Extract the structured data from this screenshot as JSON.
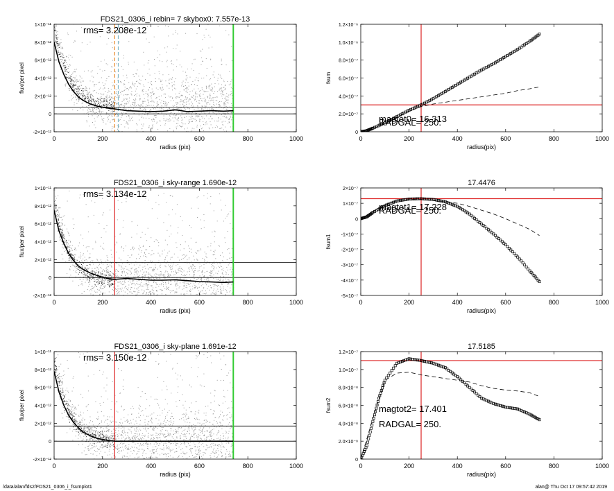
{
  "footer": {
    "path": "/data/alan/fds2/FDS21_0306_i_fsumplot1",
    "stamp": "alan@  Thu Oct 17 09:57:42 2019"
  },
  "colors": {
    "scatter": "#9a9a9a",
    "profile": "#000000",
    "red_marker": "#dd2222",
    "green_marker": "#33cc33",
    "orange_marker": "#e88a2a",
    "cyan_marker": "#7fb8c8"
  },
  "chart_data": [
    {
      "id": "p1",
      "type": "scatter",
      "title": "FDS21_0306_i rebin= 7    skybox0:  7.557e-13",
      "annotation": "rms= 3.208e-12",
      "xlabel": "radius (pix)",
      "ylabel": "flux/per pixel",
      "xlim": [
        0,
        1000
      ],
      "ylim": [
        -2e-12,
        1e-11
      ],
      "xticks": [
        0,
        200,
        400,
        600,
        800,
        1000
      ],
      "xtick_labels": [
        "0",
        "200",
        "400",
        "600",
        "800",
        "1000"
      ],
      "yticks": [
        -2e-12,
        0,
        2e-12,
        4e-12,
        6e-12,
        8e-12,
        1e-11
      ],
      "ytick_labels": [
        "-2×10⁻¹²",
        "0",
        "2×10⁻¹²",
        "4×10⁻¹²",
        "6×10⁻¹²",
        "8×10⁻¹²",
        "1×10⁻¹¹"
      ],
      "hlines": [
        0,
        7.557e-13
      ],
      "vlines": [
        {
          "x": 250,
          "color": "orange",
          "style": "dash"
        },
        {
          "x": 265,
          "color": "cyan",
          "style": "dash"
        },
        {
          "x": 740,
          "color": "green",
          "style": "solid"
        }
      ],
      "scatter_model": {
        "peak": 9e-12,
        "scale_length": 60,
        "baseline": 7.5e-13,
        "spread": 1.6e-12,
        "rmax": 740
      },
      "profile": {
        "x": [
          0,
          20,
          40,
          60,
          80,
          100,
          120,
          150,
          180,
          220,
          250,
          300,
          350,
          400,
          450,
          500,
          550,
          600,
          650,
          700,
          740
        ],
        "y": [
          8e-12,
          5.8e-12,
          4.4e-12,
          3.3e-12,
          2.5e-12,
          1.9e-12,
          1.5e-12,
          1.1e-12,
          8.5e-13,
          6.5e-13,
          5.5e-13,
          3.5e-13,
          3e-13,
          2.5e-13,
          3e-13,
          4.5e-13,
          2.5e-13,
          3e-13,
          3.5e-13,
          3e-13,
          3.5e-13
        ]
      }
    },
    {
      "id": "p2",
      "type": "line",
      "title": "",
      "annotations": [
        "magtot0=  16.313",
        "RADGAL=    250."
      ],
      "xlabel": "radius(pix)",
      "ylabel": "fsum",
      "xlim": [
        0,
        1000
      ],
      "ylim": [
        0,
        1.2e-06
      ],
      "xticks": [
        0,
        200,
        400,
        600,
        800,
        1000
      ],
      "xtick_labels": [
        "0",
        "200",
        "400",
        "600",
        "800",
        "1000"
      ],
      "yticks": [
        0,
        2e-07,
        4e-07,
        6e-07,
        8e-07,
        1e-06,
        1.2e-06
      ],
      "ytick_labels": [
        "0",
        "2.0×10⁻⁷",
        "4.0×10⁻⁷",
        "6.0×10⁻⁷",
        "8.0×10⁻⁷",
        "1.0×10⁻⁶",
        "1.2×10⁻⁶"
      ],
      "hline": 3e-07,
      "vline": 250,
      "series": [
        {
          "style": "markers",
          "x": [
            0,
            25,
            50,
            100,
            150,
            200,
            250,
            300,
            350,
            400,
            450,
            500,
            550,
            600,
            650,
            700,
            740
          ],
          "y": [
            0,
            1.2e-08,
            4e-08,
            1e-07,
            1.7e-07,
            2.4e-07,
            3e-07,
            3.7e-07,
            4.5e-07,
            5.3e-07,
            6.1e-07,
            6.9e-07,
            7.6e-07,
            8.4e-07,
            9.2e-07,
            1.01e-06,
            1.09e-06
          ]
        },
        {
          "style": "dash",
          "x": [
            0,
            50,
            100,
            150,
            200,
            250,
            300,
            350,
            400,
            450,
            500,
            550,
            600,
            650,
            700,
            740
          ],
          "y": [
            0,
            3.5e-08,
            9.5e-08,
            1.6e-07,
            2.3e-07,
            2.8e-07,
            3.1e-07,
            3.3e-07,
            3.5e-07,
            3.7e-07,
            3.9e-07,
            4.1e-07,
            4.3e-07,
            4.6e-07,
            4.8e-07,
            5e-07
          ]
        }
      ]
    },
    {
      "id": "p3",
      "type": "scatter",
      "title": "FDS21_0306_i sky-range  1.690e-12",
      "annotation": "rms= 3.134e-12",
      "xlabel": "radius (pix)",
      "ylabel": "flux/per pixel",
      "xlim": [
        0,
        1000
      ],
      "ylim": [
        -2e-12,
        1e-11
      ],
      "xticks": [
        0,
        200,
        400,
        600,
        800,
        1000
      ],
      "xtick_labels": [
        "0",
        "200",
        "400",
        "600",
        "800",
        "1000"
      ],
      "yticks": [
        -2e-12,
        0,
        2e-12,
        4e-12,
        6e-12,
        8e-12,
        1e-11
      ],
      "ytick_labels": [
        "-2×10⁻¹²",
        "0",
        "2×10⁻¹²",
        "4×10⁻¹²",
        "6×10⁻¹²",
        "8×10⁻¹²",
        "1×10⁻¹¹"
      ],
      "hlines": [
        0,
        1.69e-12
      ],
      "vlines": [
        {
          "x": 250,
          "color": "red",
          "style": "solid"
        },
        {
          "x": 740,
          "color": "green",
          "style": "solid"
        }
      ],
      "scatter_model": {
        "peak": 9e-12,
        "scale_length": 60,
        "baseline": -5e-13,
        "spread": 1.6e-12,
        "rmax": 740
      },
      "profile": {
        "x": [
          0,
          20,
          40,
          60,
          80,
          100,
          120,
          150,
          180,
          220,
          250,
          300,
          350,
          400,
          450,
          500,
          550,
          600,
          650,
          700,
          740
        ],
        "y": [
          7.5e-12,
          5.2e-12,
          3.8e-12,
          2.7e-12,
          1.9e-12,
          1.3e-12,
          9e-13,
          5e-13,
          2e-13,
          -1e-13,
          -2e-13,
          -1e-13,
          -2e-13,
          -3e-13,
          -3e-13,
          -2.5e-13,
          -3.5e-13,
          -4.5e-13,
          -5e-13,
          -5.5e-13,
          -5e-13
        ]
      }
    },
    {
      "id": "p4",
      "type": "line",
      "title": "17.4476",
      "annotations": [
        "magtot1=  17.228",
        "RADGAL=    250."
      ],
      "xlabel": "radius(pix)",
      "ylabel": "fsum1",
      "xlim": [
        0,
        1000
      ],
      "ylim": [
        -5e-07,
        2e-07
      ],
      "xticks": [
        0,
        200,
        400,
        600,
        800,
        1000
      ],
      "xtick_labels": [
        "0",
        "200",
        "400",
        "600",
        "800",
        "1000"
      ],
      "yticks": [
        -5e-07,
        -4e-07,
        -3e-07,
        -2e-07,
        -1e-07,
        0,
        1e-07,
        2e-07
      ],
      "ytick_labels": [
        "-5×10⁻⁷",
        "-4×10⁻⁷",
        "-3×10⁻⁷",
        "-2×10⁻⁷",
        "-1×10⁻⁷",
        "0",
        "1×10⁻⁷",
        "2×10⁻⁷"
      ],
      "hline": 1.3e-07,
      "vline": 250,
      "series": [
        {
          "style": "markers",
          "x": [
            0,
            25,
            50,
            100,
            150,
            200,
            250,
            300,
            350,
            400,
            450,
            500,
            550,
            600,
            650,
            700,
            740
          ],
          "y": [
            0,
            1.2e-08,
            4e-08,
            8.5e-08,
            1.15e-07,
            1.28e-07,
            1.3e-07,
            1.25e-07,
            1.1e-07,
            8e-08,
            3e-08,
            -3.5e-08,
            -1e-07,
            -1.7e-07,
            -2.5e-07,
            -3.4e-07,
            -4.1e-07
          ]
        },
        {
          "style": "dash",
          "x": [
            0,
            50,
            100,
            150,
            200,
            250,
            300,
            350,
            400,
            450,
            500,
            550,
            600,
            650,
            700,
            740
          ],
          "y": [
            0,
            4.5e-08,
            9e-08,
            1.15e-07,
            1.25e-07,
            1.25e-07,
            1.2e-07,
            1.1e-07,
            1e-07,
            8e-08,
            5.5e-08,
            3e-08,
            0,
            -3.5e-08,
            -7e-08,
            -1.1e-07
          ]
        }
      ]
    },
    {
      "id": "p5",
      "type": "scatter",
      "title": "FDS21_0306_i sky-plane  1.691e-12",
      "annotation": "rms= 3.150e-12",
      "xlabel": "radius (pix)",
      "ylabel": "flux/per pixel",
      "xlim": [
        0,
        1000
      ],
      "ylim": [
        -2e-12,
        1e-11
      ],
      "xticks": [
        0,
        200,
        400,
        600,
        800,
        1000
      ],
      "xtick_labels": [
        "0",
        "200",
        "400",
        "600",
        "800",
        "1000"
      ],
      "yticks": [
        -2e-12,
        0,
        2e-12,
        4e-12,
        6e-12,
        8e-12,
        1e-11
      ],
      "ytick_labels": [
        "-2×10⁻¹²",
        "0",
        "2×10⁻¹²",
        "4×10⁻¹²",
        "6×10⁻¹²",
        "8×10⁻¹²",
        "1×10⁻¹¹"
      ],
      "hlines": [
        0,
        1.691e-12
      ],
      "vlines": [
        {
          "x": 250,
          "color": "red",
          "style": "solid"
        },
        {
          "x": 740,
          "color": "green",
          "style": "solid"
        }
      ],
      "scatter_model": {
        "peak": 9e-12,
        "scale_length": 60,
        "baseline": 0,
        "spread": 1.6e-12,
        "rmax": 740
      },
      "profile": {
        "x": [
          0,
          20,
          40,
          60,
          80,
          100,
          120,
          150,
          180,
          220,
          250,
          300,
          350,
          400,
          450,
          500,
          550,
          600,
          650,
          700,
          740
        ],
        "y": [
          7.8e-12,
          5.5e-12,
          4e-12,
          2.9e-12,
          2.1e-12,
          1.5e-12,
          1e-12,
          6e-13,
          3e-13,
          1e-13,
          0,
          0,
          0,
          0,
          0,
          0,
          0,
          0,
          0,
          0,
          0
        ]
      }
    },
    {
      "id": "p6",
      "type": "line",
      "title": "17.5185",
      "annotations": [
        "magtot2=  17.401",
        "RADGAL=    250."
      ],
      "xlabel": "radius(pix)",
      "ylabel": "fsum2",
      "xlim": [
        0,
        1000
      ],
      "ylim": [
        0,
        1.2e-07
      ],
      "xticks": [
        0,
        200,
        400,
        600,
        800,
        1000
      ],
      "xtick_labels": [
        "0",
        "200",
        "400",
        "600",
        "800",
        "1000"
      ],
      "yticks": [
        0,
        2e-08,
        4e-08,
        6e-08,
        8e-08,
        1e-07,
        1.2e-07
      ],
      "ytick_labels": [
        "0",
        "2.0×10⁻⁸",
        "4.0×10⁻⁸",
        "6.0×10⁻⁸",
        "8.0×10⁻⁸",
        "1.0×10⁻⁷",
        "1.2×10⁻⁷"
      ],
      "hline": 1.1e-07,
      "vline": 250,
      "series": [
        {
          "style": "markers",
          "x": [
            0,
            25,
            50,
            75,
            100,
            150,
            200,
            250,
            300,
            350,
            400,
            450,
            500,
            550,
            600,
            650,
            700,
            740
          ],
          "y": [
            0,
            1.5e-08,
            4.2e-08,
            6.8e-08,
            8.8e-08,
            1.07e-07,
            1.12e-07,
            1.1e-07,
            1.07e-07,
            1.02e-07,
            9.2e-08,
            8e-08,
            6.8e-08,
            6.2e-08,
            5.8e-08,
            5.6e-08,
            5e-08,
            4.4e-08
          ]
        },
        {
          "style": "dash",
          "x": [
            0,
            50,
            100,
            150,
            200,
            250,
            300,
            350,
            400,
            450,
            500,
            550,
            600,
            650,
            700,
            740
          ],
          "y": [
            0,
            4.5e-08,
            8.8e-08,
            9.6e-08,
            9.7e-08,
            9.4e-08,
            9.2e-08,
            9e-08,
            8.8e-08,
            8.6e-08,
            8.2e-08,
            7.9e-08,
            7.7e-08,
            7.6e-08,
            7.4e-08,
            7e-08
          ]
        }
      ]
    }
  ]
}
